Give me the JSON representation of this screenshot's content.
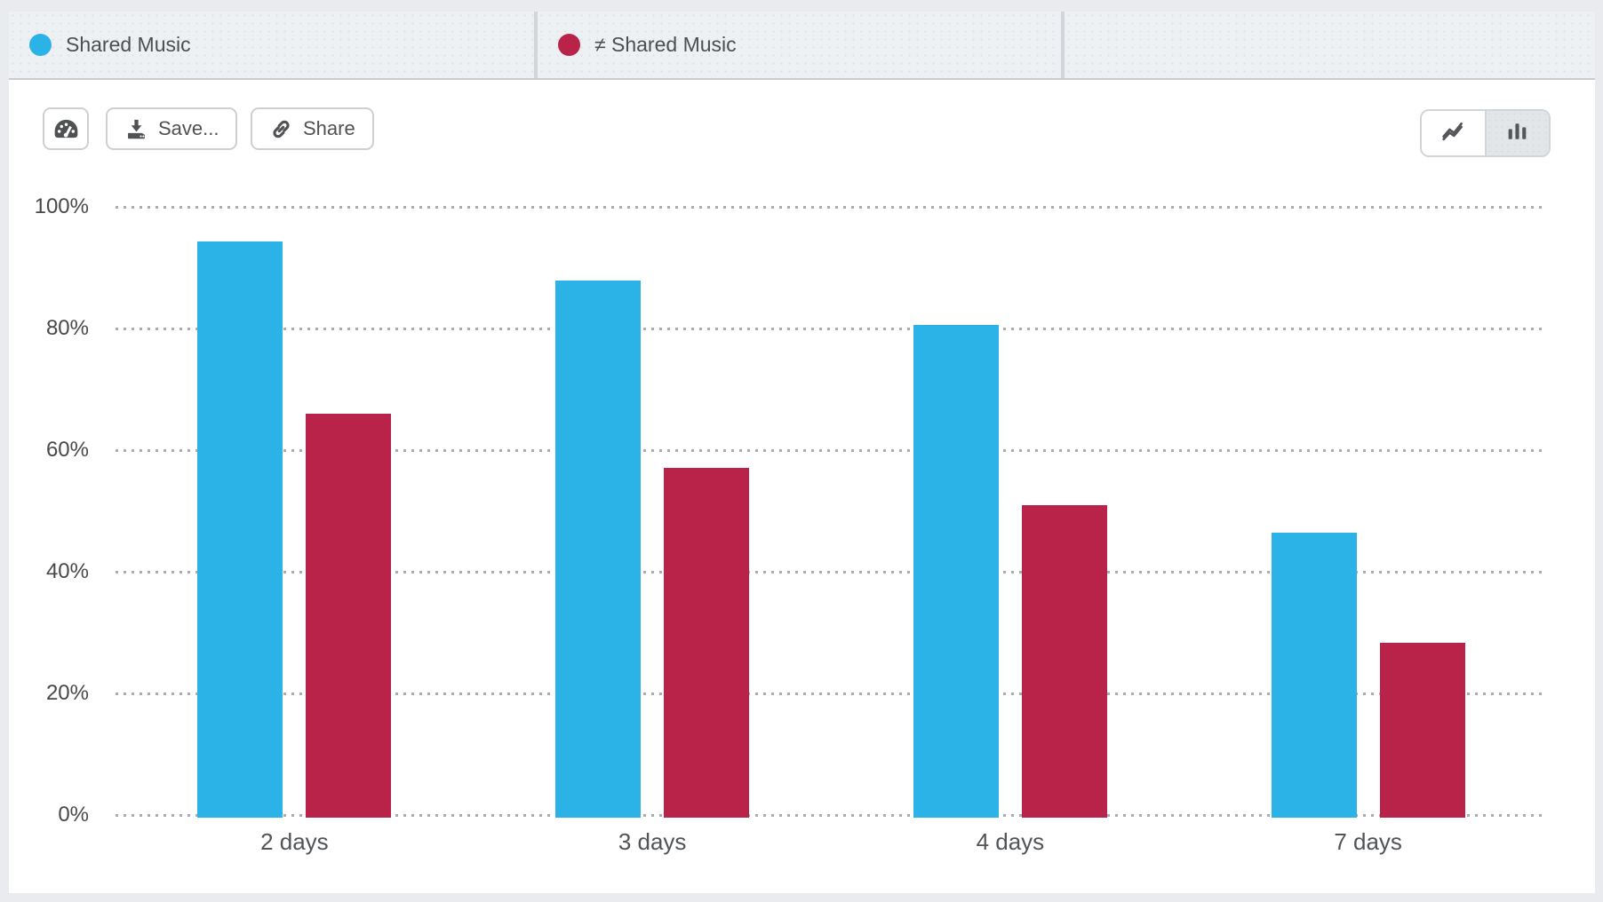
{
  "legend": {
    "items": [
      {
        "label": "Shared Music",
        "color": "#2BB3E8"
      },
      {
        "label": "≠ Shared Music",
        "color": "#B92349"
      }
    ]
  },
  "toolbar": {
    "dashboard_icon": "gauge-icon",
    "save_label": "Save...",
    "share_label": "Share"
  },
  "chart_toggle": {
    "options": [
      {
        "name": "line-chart",
        "selected": false
      },
      {
        "name": "bar-chart",
        "selected": true
      }
    ]
  },
  "chart_data": {
    "type": "bar",
    "categories": [
      "2 days",
      "3 days",
      "4 days",
      "7 days"
    ],
    "series": [
      {
        "name": "Shared Music",
        "color": "#2BB3E8",
        "values": [
          94.3,
          87.9,
          80.6,
          46.4
        ]
      },
      {
        "name": "≠ Shared Music",
        "color": "#B92349",
        "values": [
          66.0,
          57.1,
          50.9,
          28.3
        ]
      }
    ],
    "yticks": [
      100,
      80,
      60,
      40,
      20,
      0
    ],
    "ytick_suffix": "%",
    "ylim": [
      0,
      100
    ],
    "grid": "horizontal-dotted",
    "legend_position": "top",
    "title": "",
    "xlabel": "",
    "ylabel": ""
  }
}
